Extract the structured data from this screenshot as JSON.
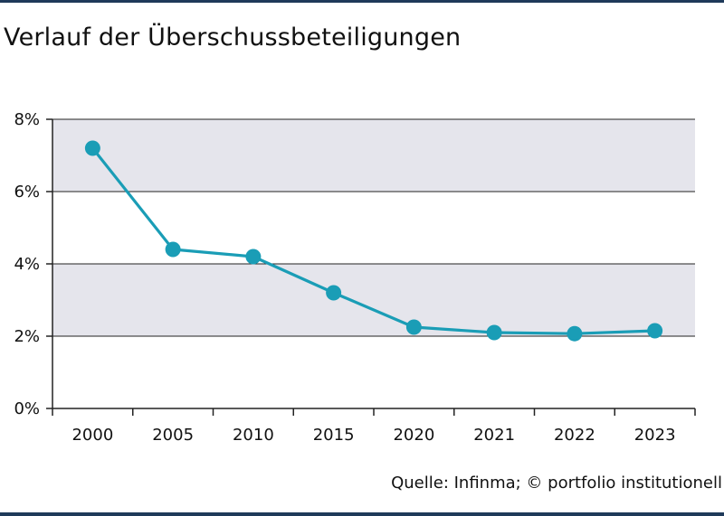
{
  "title": "Verlauf der Überschussbeteiligungen",
  "source": "Quelle: Infinma; © portfolio institutionell",
  "colors": {
    "line": "#1a9db6",
    "band": "#e5e5ec",
    "axis": "#222222",
    "rule": "#1f3a5a"
  },
  "chart_data": {
    "type": "line",
    "title": "Verlauf der Überschussbeteiligungen",
    "categories": [
      "2000",
      "2005",
      "2010",
      "2015",
      "2020",
      "2021",
      "2022",
      "2023"
    ],
    "series": [
      {
        "values": [
          7.2,
          4.4,
          4.2,
          3.2,
          2.25,
          2.1,
          2.07,
          2.15
        ]
      }
    ],
    "y_ticks": [
      "0%",
      "2%",
      "4%",
      "6%",
      "8%"
    ],
    "ylim": [
      0,
      8
    ],
    "xlabel": "",
    "ylabel": "",
    "grid": true,
    "legend": "none"
  }
}
